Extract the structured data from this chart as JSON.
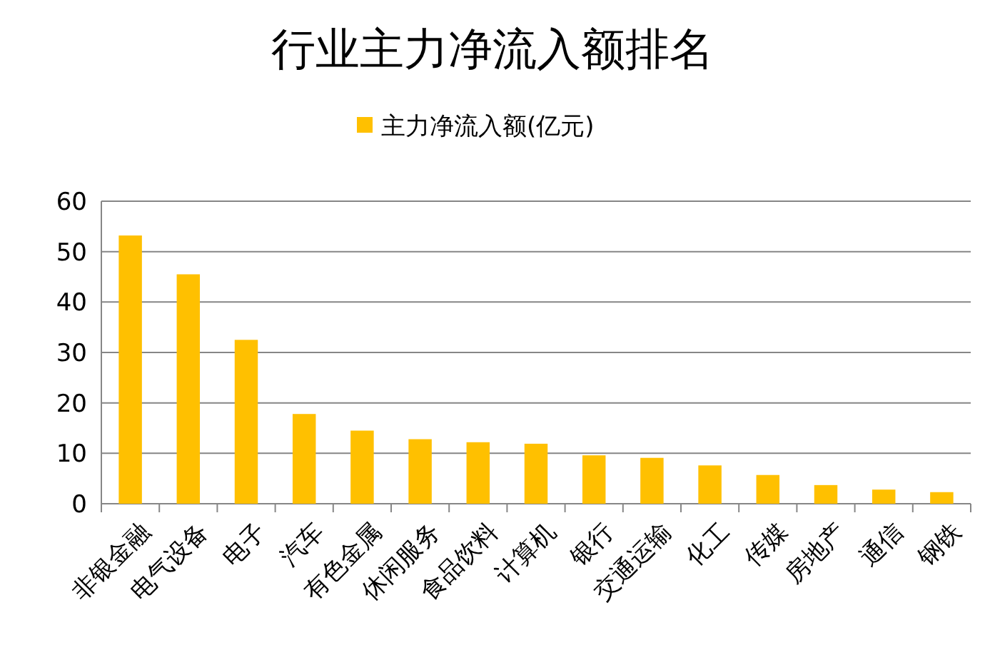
{
  "chart_data": {
    "type": "bar",
    "title": "行业主力净流入额排名",
    "categories": [
      "非银金融",
      "电气设备",
      "电子",
      "汽车",
      "有色金属",
      "休闲服务",
      "食品饮料",
      "计算机",
      "银行",
      "交通运输",
      "化工",
      "传媒",
      "房地产",
      "通信",
      "钢铁"
    ],
    "series": [
      {
        "name": "主力净流入额(亿元)",
        "color": "#ffc000",
        "values": [
          53.2,
          45.5,
          32.5,
          17.8,
          14.5,
          12.8,
          12.2,
          11.9,
          9.6,
          9.1,
          7.6,
          5.7,
          3.7,
          2.8,
          2.3
        ]
      }
    ],
    "ylim": [
      0,
      60
    ],
    "yticks": [
      0,
      10,
      20,
      30,
      40,
      50,
      60
    ],
    "grid": "y",
    "legend": "top"
  }
}
